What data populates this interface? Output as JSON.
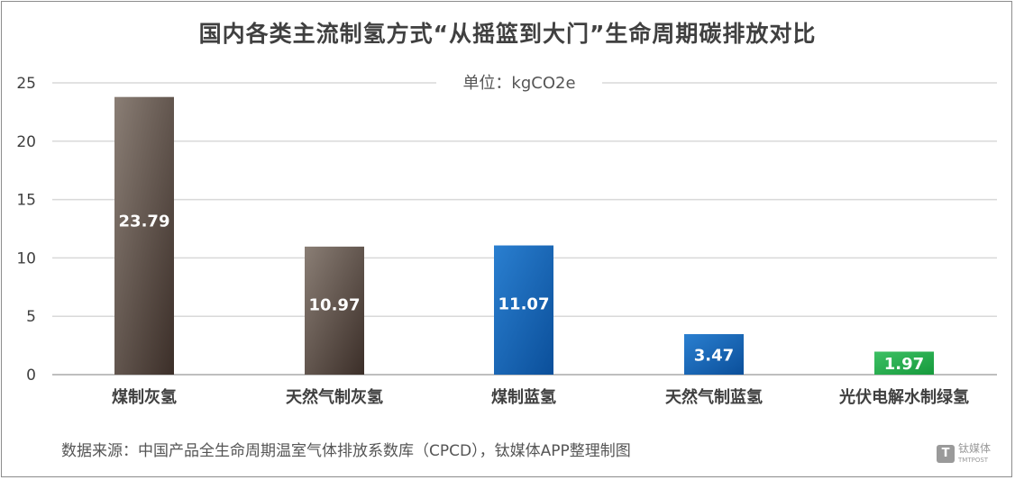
{
  "chart_data": {
    "type": "bar",
    "title": "国内各类主流制氢方式“从摇篮到大门”生命周期碳排放对比",
    "unit_label": "单位：kgCO2e",
    "categories": [
      "煤制灰氢",
      "天然气制灰氢",
      "煤制蓝氢",
      "天然气制蓝氢",
      "光伏电解水制绿氢"
    ],
    "values": [
      23.79,
      10.97,
      11.07,
      3.47,
      1.97
    ],
    "value_labels": [
      "23.79",
      "10.97",
      "11.07",
      "3.47",
      "1.97"
    ],
    "bar_colors": [
      "gray-brown",
      "gray-brown",
      "blue",
      "blue",
      "green"
    ],
    "ylim": [
      0,
      25
    ],
    "yticks": [
      "0",
      "5",
      "10",
      "15",
      "20",
      "25"
    ],
    "grid": true,
    "legend": "none"
  },
  "colors": {
    "gray-brown": {
      "light": "#8a7e75",
      "dark": "#3b2e28"
    },
    "blue": {
      "light": "#2a7fd0",
      "dark": "#0b4f9a"
    },
    "green": {
      "light": "#3dc064",
      "dark": "#169a3c"
    },
    "grid": "#d9d9d9",
    "axis_text": "#404040"
  },
  "source_text": "数据来源：中国产品全生命周期温室气体排放系数库（CPCD），钛媒体APP整理制图",
  "watermark": {
    "brand": "钛媒体",
    "sub": "TMTPOST",
    "logo": "T"
  }
}
